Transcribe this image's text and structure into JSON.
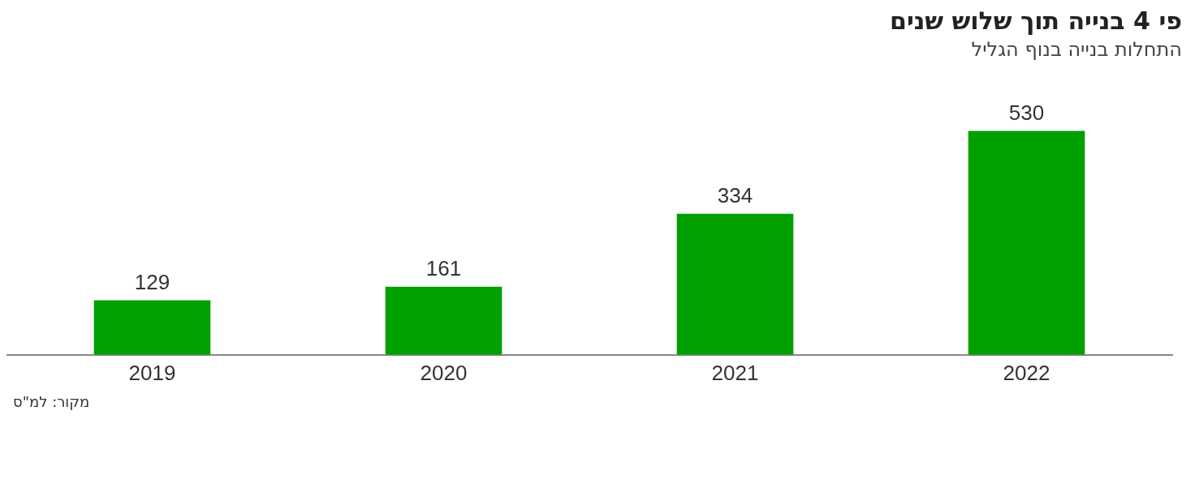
{
  "chart_data": {
    "type": "bar",
    "title": "פי 4 בנייה תוך שלוש שנים",
    "subtitle": "התחלות בנייה בנוף הגליל",
    "categories": [
      "2019",
      "2020",
      "2021",
      "2022"
    ],
    "values": [
      129,
      161,
      334,
      530
    ],
    "color": "#00a000",
    "data_labels": true,
    "grid": false,
    "legend": false,
    "annotations": [
      "מקור: למ\"ס"
    ]
  }
}
